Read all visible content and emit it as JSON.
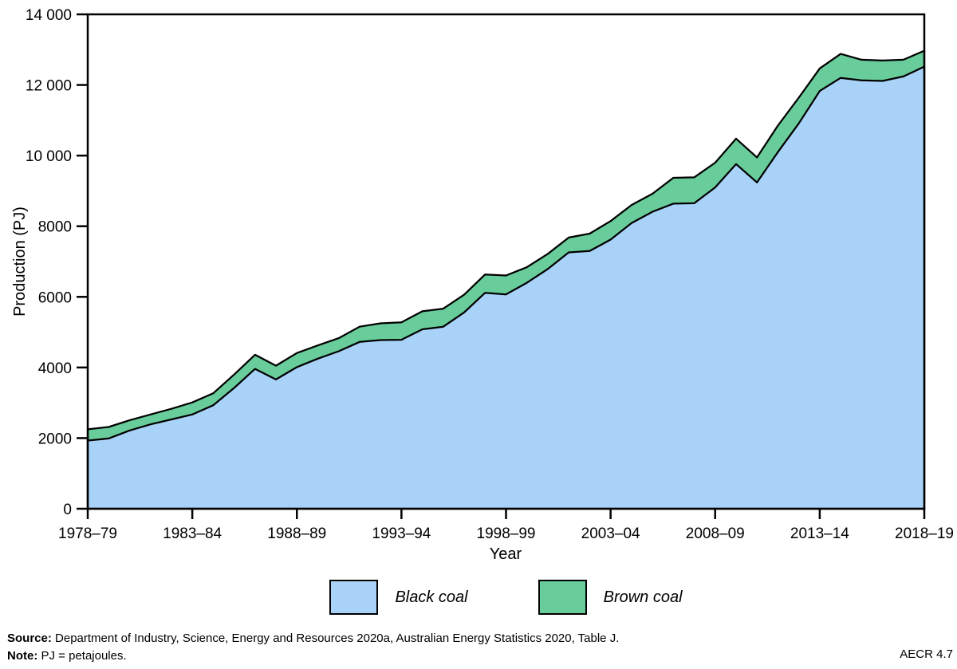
{
  "chart_data": {
    "type": "area",
    "stacked": true,
    "title": "",
    "xlabel": "Year",
    "ylabel": "Production (PJ)",
    "ylim": [
      0,
      14000
    ],
    "grid": false,
    "legend_position": "bottom",
    "y_ticks": {
      "values": [
        0,
        2000,
        4000,
        6000,
        8000,
        10000,
        12000,
        14000
      ],
      "labels": [
        "0",
        "2000",
        "4000",
        "6000",
        "8000",
        "10 000",
        "12 000",
        "14 000"
      ]
    },
    "x_tick_indices": [
      0,
      5,
      10,
      15,
      20,
      25,
      30,
      35,
      40
    ],
    "x_tick_labels": [
      "1978–79",
      "1983–84",
      "1988–89",
      "1993–94",
      "1998–99",
      "2003–04",
      "2008–09",
      "2013–14",
      "2018–19"
    ],
    "categories": [
      "1978–79",
      "1979–80",
      "1980–81",
      "1981–82",
      "1982–83",
      "1983–84",
      "1984–85",
      "1985–86",
      "1986–87",
      "1987–88",
      "1988–89",
      "1989–90",
      "1990–91",
      "1991–92",
      "1992–93",
      "1993–94",
      "1994–95",
      "1995–96",
      "1996–97",
      "1997–98",
      "1998–99",
      "1999–00",
      "2000–01",
      "2001–02",
      "2002–03",
      "2003–04",
      "2004–05",
      "2005–06",
      "2006–07",
      "2007–08",
      "2008–09",
      "2009–10",
      "2010–11",
      "2011–12",
      "2012–13",
      "2013–14",
      "2014–15",
      "2015–16",
      "2016–17",
      "2017–18",
      "2018–19"
    ],
    "series": [
      {
        "name": "Black coal",
        "color": "#a8d2f7",
        "values": [
          1930,
          1990,
          2215,
          2390,
          2530,
          2670,
          2930,
          3420,
          3960,
          3660,
          4010,
          4250,
          4460,
          4725,
          4775,
          4785,
          5080,
          5155,
          5560,
          6115,
          6070,
          6400,
          6790,
          7260,
          7300,
          7620,
          8090,
          8410,
          8640,
          8650,
          9100,
          9760,
          9240,
          10100,
          10910,
          11830,
          12200,
          12130,
          12115,
          12240,
          12520
        ]
      },
      {
        "name": "Brown coal",
        "color": "#69cd9b",
        "values": [
          320,
          325,
          290,
          280,
          300,
          340,
          340,
          380,
          400,
          390,
          400,
          375,
          370,
          430,
          475,
          495,
          510,
          510,
          500,
          520,
          535,
          440,
          430,
          420,
          490,
          525,
          510,
          510,
          730,
          735,
          700,
          720,
          710,
          750,
          730,
          640,
          680,
          585,
          577,
          475,
          450
        ]
      }
    ],
    "outline_color": "#000000"
  },
  "legend": {
    "items": [
      {
        "label": "Black coal",
        "color": "#a8d2f7"
      },
      {
        "label": "Brown coal",
        "color": "#69cd9b"
      }
    ]
  },
  "footer": {
    "source_prefix": "Source:",
    "source_text": " Department of Industry, Science, Energy and Resources 2020a, Australian Energy Statistics 2020, Table J.",
    "note_prefix": "Note:",
    "note_text": " PJ = petajoules.",
    "figure_ref": "AECR 4.7"
  }
}
